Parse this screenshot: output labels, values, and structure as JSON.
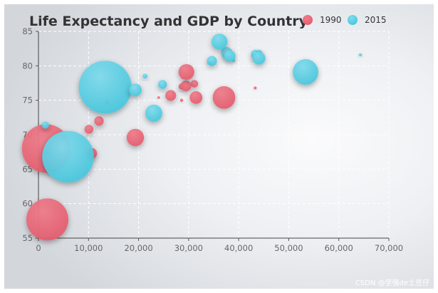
{
  "chart_data": {
    "type": "scatter",
    "subtype": "bubble",
    "title": "Life Expectancy and GDP by Country",
    "xlabel": "",
    "ylabel": "",
    "xlim": [
      0,
      70000
    ],
    "ylim": [
      55,
      85
    ],
    "x_ticks": [
      "0",
      "10,000",
      "20,000",
      "30,000",
      "40,000",
      "50,000",
      "60,000",
      "70,000"
    ],
    "y_ticks": [
      "55",
      "60",
      "65",
      "70",
      "75",
      "80",
      "85"
    ],
    "grid": "dashed",
    "legend_position": "top-right",
    "size_encoding": "population",
    "series": [
      {
        "name": "1990",
        "color": "#e45a6c",
        "points": [
          [
            28604,
            77,
            17096869
          ],
          [
            31163,
            77.4,
            27662440
          ],
          [
            1516,
            68,
            1154605773
          ],
          [
            13670,
            74.7,
            10582082
          ],
          [
            28599,
            75,
            4986705
          ],
          [
            29476,
            77.1,
            56943299
          ],
          [
            31476,
            75.4,
            78958237
          ],
          [
            28666,
            78.1,
            254830
          ],
          [
            1777,
            57.7,
            870601776
          ],
          [
            29550,
            79.1,
            122249285
          ],
          [
            2076,
            67.9,
            20194354
          ],
          [
            12087,
            72,
            42972254
          ],
          [
            24021,
            75.4,
            3397534
          ],
          [
            43296,
            76.8,
            4240375
          ],
          [
            10088,
            70.8,
            38195258
          ],
          [
            19349,
            69.6,
            147568552
          ],
          [
            10670,
            67.3,
            53994605
          ],
          [
            26424,
            75.7,
            57110117
          ],
          [
            37062,
            75.4,
            252847810
          ]
        ]
      },
      {
        "name": "2015",
        "color": "#4ccbe0",
        "points": [
          [
            44056,
            81.8,
            23968973
          ],
          [
            43294,
            81.7,
            35939927
          ],
          [
            13334,
            76.9,
            1376048943
          ],
          [
            21291,
            78.5,
            11389562
          ],
          [
            38923,
            80.8,
            5503457
          ],
          [
            37599,
            81.9,
            64395345
          ],
          [
            44053,
            81.1,
            80688545
          ],
          [
            42182,
            82.8,
            329425
          ],
          [
            5903,
            66.8,
            1311050527
          ],
          [
            36162,
            83.5,
            126573481
          ],
          [
            1390,
            71.4,
            25155317
          ],
          [
            34644,
            80.7,
            50293439
          ],
          [
            34186,
            80.6,
            4528526
          ],
          [
            64304,
            81.6,
            5210967
          ],
          [
            24787,
            77.3,
            38611794
          ],
          [
            23038,
            73.13,
            143456918
          ],
          [
            19360,
            76.5,
            78665830
          ],
          [
            38225,
            81.4,
            64715810
          ],
          [
            53354,
            79.1,
            321773631
          ]
        ]
      }
    ]
  },
  "watermark": "CSDN @坚强de土豆仔"
}
